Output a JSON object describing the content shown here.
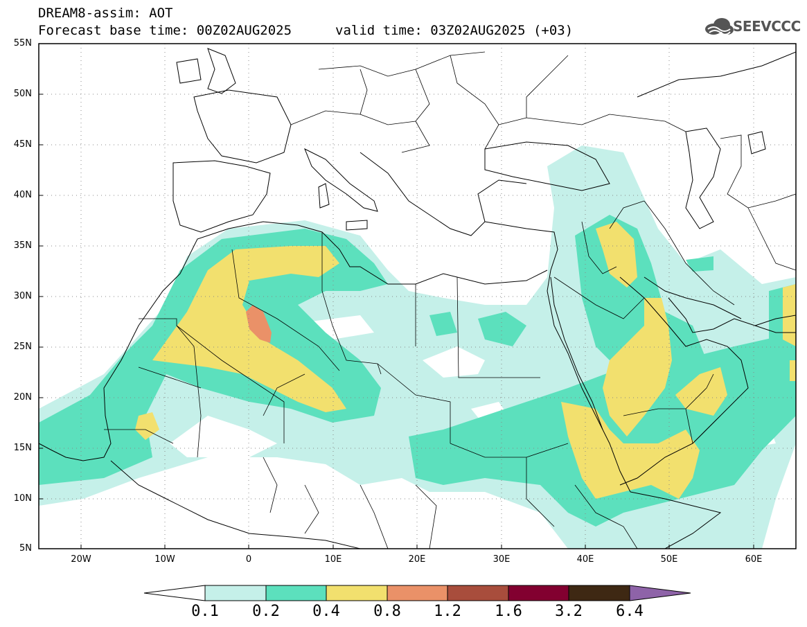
{
  "header": {
    "title": "DREAM8-assim: AOT",
    "base_time": "Forecast base time: 00Z02AUG2025",
    "valid_time": "valid time: 03Z02AUG2025 (+03)"
  },
  "logo": {
    "text": "SEEVCCC",
    "icon": "cloud-logo-icon"
  },
  "map": {
    "lat_labels": [
      "55N",
      "50N",
      "45N",
      "40N",
      "35N",
      "30N",
      "25N",
      "20N",
      "15N",
      "10N",
      "5N"
    ],
    "lon_labels": [
      "20W",
      "10W",
      "0",
      "10E",
      "20E",
      "30E",
      "40E",
      "50E",
      "60E"
    ],
    "land_color": "#ffffff",
    "border_color": "#000000",
    "grid": "dotted"
  },
  "colorbar": {
    "levels": [
      "0.1",
      "0.2",
      "0.4",
      "0.8",
      "1.2",
      "1.6",
      "3.2",
      "6.4"
    ],
    "colors": [
      "#c5f0e9",
      "#5ce0bd",
      "#f2e06e",
      "#ea9168",
      "#a84d3c",
      "#820030",
      "#3e2813",
      "#8e63a8"
    ]
  }
}
